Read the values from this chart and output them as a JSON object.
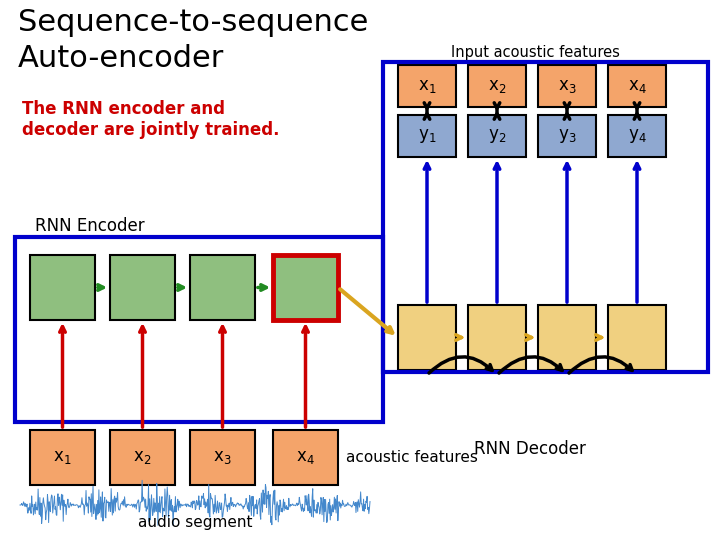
{
  "title_line1": "Sequence-to-sequence",
  "title_line2": "Auto-encoder",
  "subtitle": "Input acoustic features",
  "rnn_text": "The RNN encoder and\ndecoder are jointly trained.",
  "encoder_label": "RNN Encoder",
  "decoder_label": "RNN Decoder",
  "acoustic_label": "acoustic features",
  "audio_label": "audio segment",
  "bg_color": "#ffffff",
  "salmon_color": "#F4A46A",
  "green_color": "#8FBF7F",
  "blue_color": "#8FA8D0",
  "yellow_color": "#F0D080",
  "red_color": "#CC0000",
  "green_arrow": "#228B22",
  "yellow_arrow": "#DAA520",
  "box_blue": "#0000CC"
}
